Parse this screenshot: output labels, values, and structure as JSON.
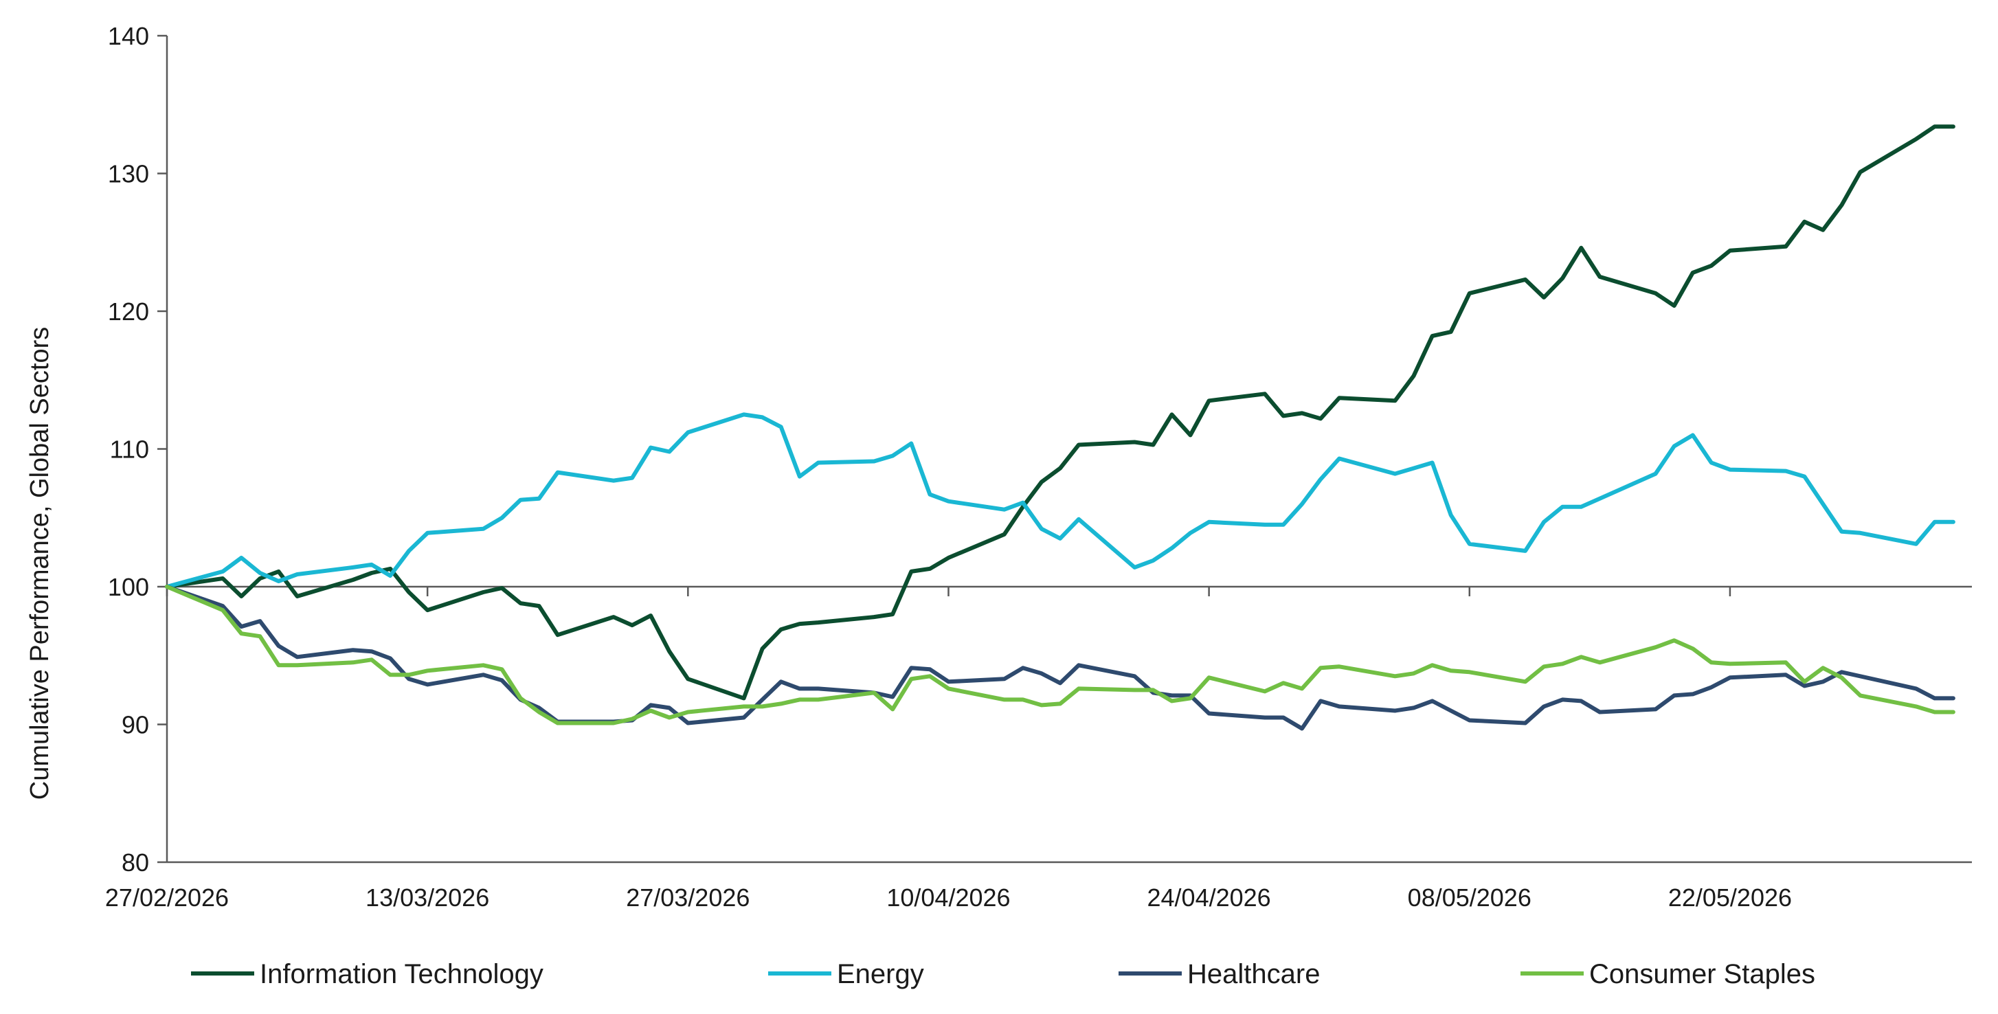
{
  "chart_data": {
    "type": "line",
    "title": "",
    "xlabel": "",
    "ylabel": "Cumulative Performance, Global Sectors",
    "ylim": [
      80,
      140
    ],
    "xlim": [
      "27/02/2026",
      "04/06/2026"
    ],
    "x_ticks": [
      "27/02/2026",
      "13/03/2026",
      "27/03/2026",
      "10/04/2026",
      "24/04/2026",
      "08/05/2026",
      "22/05/2026"
    ],
    "y_ticks": [
      80,
      90,
      100,
      110,
      120,
      130,
      140
    ],
    "reference_line": 100,
    "grid": false,
    "legend_position": "bottom",
    "series": [
      {
        "name": "Information Technology",
        "color": "#0b4d2f",
        "points": [
          [
            "27/02/2026",
            100.0
          ],
          [
            "02/03/2026",
            100.6
          ],
          [
            "03/03/2026",
            99.3
          ],
          [
            "04/03/2026",
            100.6
          ],
          [
            "05/03/2026",
            101.1
          ],
          [
            "06/03/2026",
            99.3
          ],
          [
            "09/03/2026",
            100.5
          ],
          [
            "10/03/2026",
            101.0
          ],
          [
            "11/03/2026",
            101.3
          ],
          [
            "12/03/2026",
            99.6
          ],
          [
            "13/03/2026",
            98.3
          ],
          [
            "16/03/2026",
            99.6
          ],
          [
            "17/03/2026",
            99.9
          ],
          [
            "18/03/2026",
            98.8
          ],
          [
            "19/03/2026",
            98.6
          ],
          [
            "20/03/2026",
            96.5
          ],
          [
            "23/03/2026",
            97.8
          ],
          [
            "24/03/2026",
            97.2
          ],
          [
            "25/03/2026",
            97.9
          ],
          [
            "26/03/2026",
            95.3
          ],
          [
            "27/03/2026",
            93.3
          ],
          [
            "30/03/2026",
            91.9
          ],
          [
            "31/03/2026",
            95.5
          ],
          [
            "01/04/2026",
            96.9
          ],
          [
            "02/04/2026",
            97.3
          ],
          [
            "03/04/2026",
            97.4
          ],
          [
            "06/04/2026",
            97.8
          ],
          [
            "07/04/2026",
            98.0
          ],
          [
            "08/04/2026",
            101.1
          ],
          [
            "09/04/2026",
            101.3
          ],
          [
            "10/04/2026",
            102.1
          ],
          [
            "13/04/2026",
            103.8
          ],
          [
            "14/04/2026",
            105.8
          ],
          [
            "15/04/2026",
            107.6
          ],
          [
            "16/04/2026",
            108.6
          ],
          [
            "17/04/2026",
            110.3
          ],
          [
            "20/04/2026",
            110.5
          ],
          [
            "21/04/2026",
            110.3
          ],
          [
            "22/04/2026",
            112.5
          ],
          [
            "23/04/2026",
            111.0
          ],
          [
            "24/04/2026",
            113.5
          ],
          [
            "27/04/2026",
            114.0
          ],
          [
            "28/04/2026",
            112.4
          ],
          [
            "29/04/2026",
            112.6
          ],
          [
            "30/04/2026",
            112.2
          ],
          [
            "01/05/2026",
            113.7
          ],
          [
            "04/05/2026",
            113.5
          ],
          [
            "05/05/2026",
            115.3
          ],
          [
            "06/05/2026",
            118.2
          ],
          [
            "07/05/2026",
            118.5
          ],
          [
            "08/05/2026",
            121.3
          ],
          [
            "11/05/2026",
            122.3
          ],
          [
            "12/05/2026",
            121.0
          ],
          [
            "13/05/2026",
            122.4
          ],
          [
            "14/05/2026",
            124.6
          ],
          [
            "15/05/2026",
            122.5
          ],
          [
            "18/05/2026",
            121.3
          ],
          [
            "19/05/2026",
            120.4
          ],
          [
            "20/05/2026",
            122.8
          ],
          [
            "21/05/2026",
            123.3
          ],
          [
            "22/05/2026",
            124.4
          ],
          [
            "25/05/2026",
            124.7
          ],
          [
            "26/05/2026",
            126.5
          ],
          [
            "27/05/2026",
            125.9
          ],
          [
            "28/05/2026",
            127.7
          ],
          [
            "29/05/2026",
            130.1
          ],
          [
            "01/06/2026",
            132.5
          ],
          [
            "02/06/2026",
            133.4
          ],
          [
            "03/06/2026",
            133.4
          ]
        ]
      },
      {
        "name": "Energy",
        "color": "#1ab7d3",
        "points": [
          [
            "27/02/2026",
            100.0
          ],
          [
            "02/03/2026",
            101.1
          ],
          [
            "03/03/2026",
            102.1
          ],
          [
            "04/03/2026",
            101.0
          ],
          [
            "05/03/2026",
            100.4
          ],
          [
            "06/03/2026",
            100.9
          ],
          [
            "09/03/2026",
            101.4
          ],
          [
            "10/03/2026",
            101.6
          ],
          [
            "11/03/2026",
            100.8
          ],
          [
            "12/03/2026",
            102.6
          ],
          [
            "13/03/2026",
            103.9
          ],
          [
            "16/03/2026",
            104.2
          ],
          [
            "17/03/2026",
            105.0
          ],
          [
            "18/03/2026",
            106.3
          ],
          [
            "19/03/2026",
            106.4
          ],
          [
            "20/03/2026",
            108.3
          ],
          [
            "23/03/2026",
            107.7
          ],
          [
            "24/03/2026",
            107.9
          ],
          [
            "25/03/2026",
            110.1
          ],
          [
            "26/03/2026",
            109.8
          ],
          [
            "27/03/2026",
            111.2
          ],
          [
            "30/03/2026",
            112.5
          ],
          [
            "31/03/2026",
            112.3
          ],
          [
            "01/04/2026",
            111.6
          ],
          [
            "02/04/2026",
            108.0
          ],
          [
            "03/04/2026",
            109.0
          ],
          [
            "06/04/2026",
            109.1
          ],
          [
            "07/04/2026",
            109.5
          ],
          [
            "08/04/2026",
            110.4
          ],
          [
            "09/04/2026",
            106.7
          ],
          [
            "10/04/2026",
            106.2
          ],
          [
            "13/04/2026",
            105.6
          ],
          [
            "14/04/2026",
            106.1
          ],
          [
            "15/04/2026",
            104.2
          ],
          [
            "16/04/2026",
            103.5
          ],
          [
            "17/04/2026",
            104.9
          ],
          [
            "20/04/2026",
            101.4
          ],
          [
            "21/04/2026",
            101.9
          ],
          [
            "22/04/2026",
            102.8
          ],
          [
            "23/04/2026",
            103.9
          ],
          [
            "24/04/2026",
            104.7
          ],
          [
            "27/04/2026",
            104.5
          ],
          [
            "28/04/2026",
            104.5
          ],
          [
            "29/04/2026",
            106.0
          ],
          [
            "30/04/2026",
            107.8
          ],
          [
            "01/05/2026",
            109.3
          ],
          [
            "04/05/2026",
            108.2
          ],
          [
            "05/05/2026",
            108.6
          ],
          [
            "06/05/2026",
            109.0
          ],
          [
            "07/05/2026",
            105.2
          ],
          [
            "08/05/2026",
            103.1
          ],
          [
            "11/05/2026",
            102.6
          ],
          [
            "12/05/2026",
            104.7
          ],
          [
            "13/05/2026",
            105.8
          ],
          [
            "14/05/2026",
            105.8
          ],
          [
            "15/05/2026",
            106.4
          ],
          [
            "18/05/2026",
            108.2
          ],
          [
            "19/05/2026",
            110.2
          ],
          [
            "20/05/2026",
            111.0
          ],
          [
            "21/05/2026",
            109.0
          ],
          [
            "22/05/2026",
            108.5
          ],
          [
            "25/05/2026",
            108.4
          ],
          [
            "26/05/2026",
            108.0
          ],
          [
            "27/05/2026",
            106.0
          ],
          [
            "28/05/2026",
            104.0
          ],
          [
            "29/05/2026",
            103.9
          ],
          [
            "01/06/2026",
            103.1
          ],
          [
            "02/06/2026",
            104.7
          ],
          [
            "03/06/2026",
            104.7
          ]
        ]
      },
      {
        "name": "Healthcare",
        "color": "#2e4a6e",
        "points": [
          [
            "27/02/2026",
            100.0
          ],
          [
            "02/03/2026",
            98.6
          ],
          [
            "03/03/2026",
            97.1
          ],
          [
            "04/03/2026",
            97.5
          ],
          [
            "05/03/2026",
            95.7
          ],
          [
            "06/03/2026",
            94.9
          ],
          [
            "09/03/2026",
            95.4
          ],
          [
            "10/03/2026",
            95.3
          ],
          [
            "11/03/2026",
            94.8
          ],
          [
            "12/03/2026",
            93.3
          ],
          [
            "13/03/2026",
            92.9
          ],
          [
            "16/03/2026",
            93.6
          ],
          [
            "17/03/2026",
            93.2
          ],
          [
            "18/03/2026",
            91.8
          ],
          [
            "19/03/2026",
            91.2
          ],
          [
            "20/03/2026",
            90.2
          ],
          [
            "23/03/2026",
            90.2
          ],
          [
            "24/03/2026",
            90.3
          ],
          [
            "25/03/2026",
            91.4
          ],
          [
            "26/03/2026",
            91.2
          ],
          [
            "27/03/2026",
            90.1
          ],
          [
            "30/03/2026",
            90.5
          ],
          [
            "31/03/2026",
            91.8
          ],
          [
            "01/04/2026",
            93.1
          ],
          [
            "02/04/2026",
            92.6
          ],
          [
            "03/04/2026",
            92.6
          ],
          [
            "06/04/2026",
            92.3
          ],
          [
            "07/04/2026",
            92.0
          ],
          [
            "08/04/2026",
            94.1
          ],
          [
            "09/04/2026",
            94.0
          ],
          [
            "10/04/2026",
            93.1
          ],
          [
            "13/04/2026",
            93.3
          ],
          [
            "14/04/2026",
            94.1
          ],
          [
            "15/04/2026",
            93.7
          ],
          [
            "16/04/2026",
            93.0
          ],
          [
            "17/04/2026",
            94.3
          ],
          [
            "20/04/2026",
            93.5
          ],
          [
            "21/04/2026",
            92.3
          ],
          [
            "22/04/2026",
            92.1
          ],
          [
            "23/04/2026",
            92.1
          ],
          [
            "24/04/2026",
            90.8
          ],
          [
            "27/04/2026",
            90.5
          ],
          [
            "28/04/2026",
            90.5
          ],
          [
            "29/04/2026",
            89.7
          ],
          [
            "30/04/2026",
            91.7
          ],
          [
            "01/05/2026",
            91.3
          ],
          [
            "04/05/2026",
            91.0
          ],
          [
            "05/05/2026",
            91.2
          ],
          [
            "06/05/2026",
            91.7
          ],
          [
            "07/05/2026",
            91.0
          ],
          [
            "08/05/2026",
            90.3
          ],
          [
            "11/05/2026",
            90.1
          ],
          [
            "12/05/2026",
            91.3
          ],
          [
            "13/05/2026",
            91.8
          ],
          [
            "14/05/2026",
            91.7
          ],
          [
            "15/05/2026",
            90.9
          ],
          [
            "18/05/2026",
            91.1
          ],
          [
            "19/05/2026",
            92.1
          ],
          [
            "20/05/2026",
            92.2
          ],
          [
            "21/05/2026",
            92.7
          ],
          [
            "22/05/2026",
            93.4
          ],
          [
            "25/05/2026",
            93.6
          ],
          [
            "26/05/2026",
            92.8
          ],
          [
            "27/05/2026",
            93.1
          ],
          [
            "28/05/2026",
            93.8
          ],
          [
            "29/05/2026",
            93.5
          ],
          [
            "01/06/2026",
            92.6
          ],
          [
            "02/06/2026",
            91.9
          ],
          [
            "03/06/2026",
            91.9
          ]
        ]
      },
      {
        "name": "Consumer Staples",
        "color": "#72bf44",
        "points": [
          [
            "27/02/2026",
            100.0
          ],
          [
            "02/03/2026",
            98.3
          ],
          [
            "03/03/2026",
            96.6
          ],
          [
            "04/03/2026",
            96.4
          ],
          [
            "05/03/2026",
            94.3
          ],
          [
            "06/03/2026",
            94.3
          ],
          [
            "09/03/2026",
            94.5
          ],
          [
            "10/03/2026",
            94.7
          ],
          [
            "11/03/2026",
            93.6
          ],
          [
            "12/03/2026",
            93.6
          ],
          [
            "13/03/2026",
            93.9
          ],
          [
            "16/03/2026",
            94.3
          ],
          [
            "17/03/2026",
            94.0
          ],
          [
            "18/03/2026",
            91.9
          ],
          [
            "19/03/2026",
            90.9
          ],
          [
            "20/03/2026",
            90.1
          ],
          [
            "23/03/2026",
            90.1
          ],
          [
            "24/03/2026",
            90.4
          ],
          [
            "25/03/2026",
            91.0
          ],
          [
            "26/03/2026",
            90.5
          ],
          [
            "27/03/2026",
            90.9
          ],
          [
            "30/03/2026",
            91.3
          ],
          [
            "31/03/2026",
            91.3
          ],
          [
            "01/04/2026",
            91.5
          ],
          [
            "02/04/2026",
            91.8
          ],
          [
            "03/04/2026",
            91.8
          ],
          [
            "06/04/2026",
            92.3
          ],
          [
            "07/04/2026",
            91.1
          ],
          [
            "08/04/2026",
            93.3
          ],
          [
            "09/04/2026",
            93.5
          ],
          [
            "10/04/2026",
            92.6
          ],
          [
            "13/04/2026",
            91.8
          ],
          [
            "14/04/2026",
            91.8
          ],
          [
            "15/04/2026",
            91.4
          ],
          [
            "16/04/2026",
            91.5
          ],
          [
            "17/04/2026",
            92.6
          ],
          [
            "20/04/2026",
            92.5
          ],
          [
            "21/04/2026",
            92.5
          ],
          [
            "22/04/2026",
            91.7
          ],
          [
            "23/04/2026",
            91.9
          ],
          [
            "24/04/2026",
            93.4
          ],
          [
            "27/04/2026",
            92.4
          ],
          [
            "28/04/2026",
            93.0
          ],
          [
            "29/04/2026",
            92.6
          ],
          [
            "30/04/2026",
            94.1
          ],
          [
            "01/05/2026",
            94.2
          ],
          [
            "04/05/2026",
            93.5
          ],
          [
            "05/05/2026",
            93.7
          ],
          [
            "06/05/2026",
            94.3
          ],
          [
            "07/05/2026",
            93.9
          ],
          [
            "08/05/2026",
            93.8
          ],
          [
            "11/05/2026",
            93.1
          ],
          [
            "12/05/2026",
            94.2
          ],
          [
            "13/05/2026",
            94.4
          ],
          [
            "14/05/2026",
            94.9
          ],
          [
            "15/05/2026",
            94.5
          ],
          [
            "18/05/2026",
            95.6
          ],
          [
            "19/05/2026",
            96.1
          ],
          [
            "20/05/2026",
            95.5
          ],
          [
            "21/05/2026",
            94.5
          ],
          [
            "22/05/2026",
            94.4
          ],
          [
            "25/05/2026",
            94.5
          ],
          [
            "26/05/2026",
            93.1
          ],
          [
            "27/05/2026",
            94.1
          ],
          [
            "28/05/2026",
            93.4
          ],
          [
            "29/05/2026",
            92.1
          ],
          [
            "01/06/2026",
            91.3
          ],
          [
            "02/06/2026",
            90.9
          ],
          [
            "03/06/2026",
            90.9
          ]
        ]
      }
    ]
  }
}
